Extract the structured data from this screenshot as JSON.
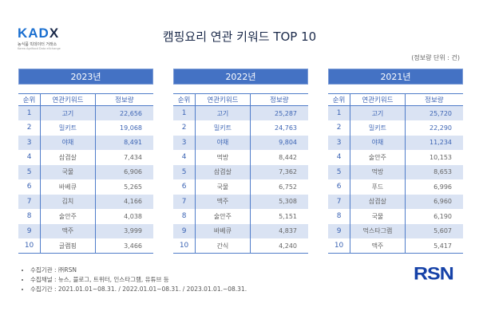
{
  "logo": {
    "mark": "KADX",
    "sub": "농식품 빅데이터 거래소",
    "sub2": "Korea Agrifood Data eXchange"
  },
  "title": "캠핑요리 연관 키워드 TOP 10",
  "unit": "(정보량 단위 : 건)",
  "headers": [
    "순위",
    "연관키워드",
    "정보량"
  ],
  "accent": "#4472c4",
  "tables": [
    {
      "year": "2023년",
      "rows": [
        [
          "1",
          "고기",
          "22,656"
        ],
        [
          "2",
          "밀키트",
          "19,068"
        ],
        [
          "3",
          "야채",
          "8,491"
        ],
        [
          "4",
          "삼겹살",
          "7,434"
        ],
        [
          "5",
          "국물",
          "6,906"
        ],
        [
          "6",
          "바베큐",
          "5,265"
        ],
        [
          "7",
          "김치",
          "4,166"
        ],
        [
          "8",
          "술안주",
          "4,038"
        ],
        [
          "9",
          "맥주",
          "3,999"
        ],
        [
          "10",
          "글램핑",
          "3,466"
        ]
      ]
    },
    {
      "year": "2022년",
      "rows": [
        [
          "1",
          "고기",
          "25,287"
        ],
        [
          "2",
          "밀키트",
          "24,763"
        ],
        [
          "3",
          "야채",
          "9,804"
        ],
        [
          "4",
          "먹방",
          "8,442"
        ],
        [
          "5",
          "삼겹살",
          "7,362"
        ],
        [
          "6",
          "국물",
          "6,752"
        ],
        [
          "7",
          "맥주",
          "5,308"
        ],
        [
          "8",
          "술안주",
          "5,151"
        ],
        [
          "9",
          "바베큐",
          "4,837"
        ],
        [
          "10",
          "간식",
          "4,240"
        ]
      ]
    },
    {
      "year": "2021년",
      "rows": [
        [
          "1",
          "고기",
          "25,720"
        ],
        [
          "2",
          "밀키트",
          "22,290"
        ],
        [
          "3",
          "야채",
          "11,234"
        ],
        [
          "4",
          "술안주",
          "10,153"
        ],
        [
          "5",
          "먹방",
          "8,653"
        ],
        [
          "6",
          "푸드",
          "6,996"
        ],
        [
          "7",
          "삼겹살",
          "6,960"
        ],
        [
          "8",
          "국물",
          "6,190"
        ],
        [
          "9",
          "먹스타그램",
          "5,607"
        ],
        [
          "10",
          "맥주",
          "5,417"
        ]
      ]
    }
  ],
  "notes": [
    "수집기관 : ㈜RSN",
    "수집채널 : 뉴스, 블로그, 트위터, 인스타그램, 유튜브 등",
    "수집기간 : 2021.01.01~08.31. / 2022.01.01~08.31. / 2023.01.01.~08.31."
  ],
  "rsn_logo": "RSN"
}
